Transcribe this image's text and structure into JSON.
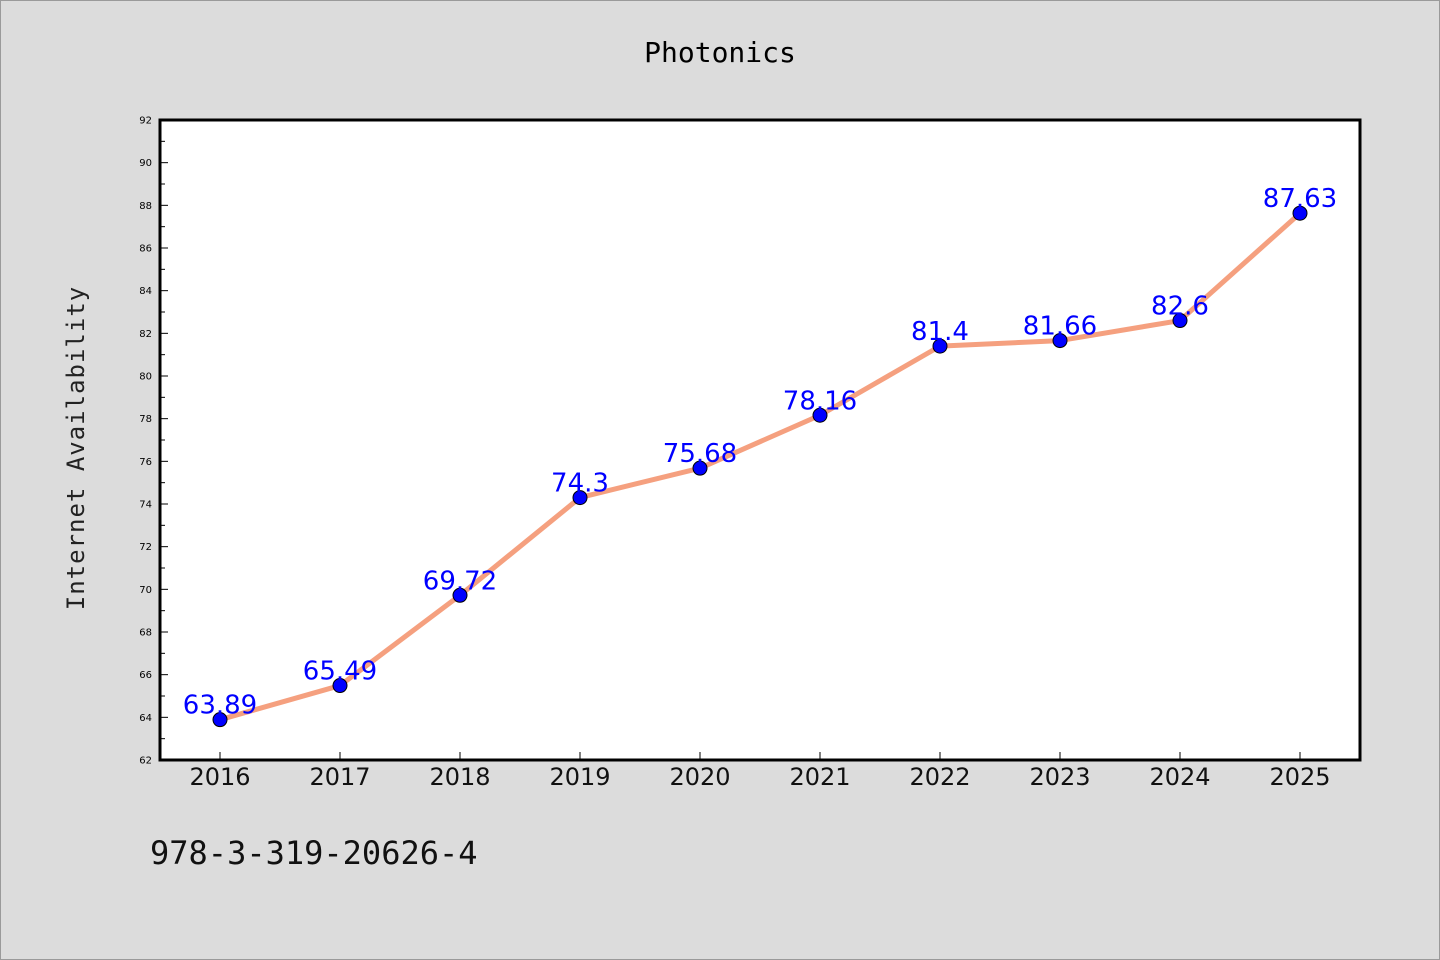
{
  "chart_data": {
    "type": "line",
    "title": "Photonics",
    "xlabel": "",
    "ylabel": "Internet Availability",
    "categories": [
      "2016",
      "2017",
      "2018",
      "2019",
      "2020",
      "2021",
      "2022",
      "2023",
      "2024",
      "2025"
    ],
    "series": [
      {
        "values": [
          63.89,
          65.49,
          69.72,
          74.3,
          75.68,
          78.16,
          81.4,
          81.66,
          82.6,
          87.63
        ],
        "data_labels": [
          "63.89",
          "65.49",
          "69.72",
          "74.3",
          "75.68",
          "78.16",
          "81.4",
          "81.66",
          "82.6",
          "87.63"
        ],
        "line_color": "#f5a07f",
        "marker_color": "#0000ff"
      }
    ],
    "ylim": [
      62,
      92
    ],
    "yticks": [
      "62",
      "64",
      "66",
      "68",
      "70",
      "72",
      "74",
      "76",
      "78",
      "80",
      "82",
      "84",
      "86",
      "88",
      "90",
      "92"
    ],
    "grid": false,
    "legend": "none",
    "label_color": "#0000ff"
  },
  "footer": {
    "isbn": "978-3-319-20626-4"
  }
}
